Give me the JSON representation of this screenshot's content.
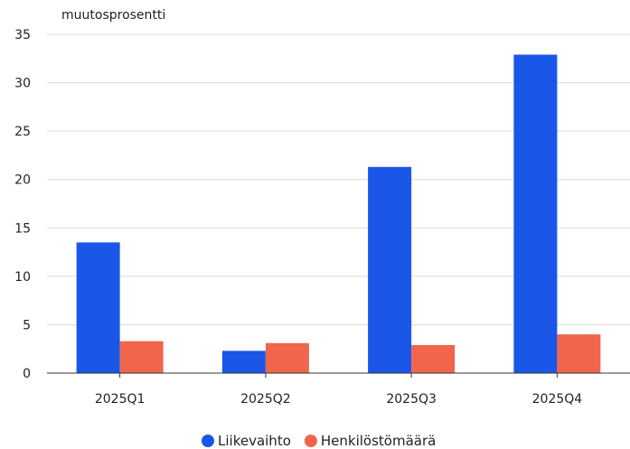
{
  "chart_data": {
    "type": "bar",
    "title": "",
    "xlabel": "",
    "ylabel": "muutosprosentti",
    "ylim": [
      0,
      35
    ],
    "yticks": [
      0,
      5,
      10,
      15,
      20,
      25,
      30,
      35
    ],
    "grid": true,
    "legend_position": "bottom-center",
    "categories": [
      "2025Q1",
      "2025Q2",
      "2025Q3",
      "2025Q4"
    ],
    "series": [
      {
        "name": "Liikevaihto",
        "color": "#1a56e8",
        "values": [
          13.5,
          2.3,
          21.3,
          32.9
        ]
      },
      {
        "name": "Henkilöstömäärä",
        "color": "#f0654c",
        "values": [
          3.3,
          3.1,
          2.9,
          4.0
        ]
      }
    ]
  }
}
